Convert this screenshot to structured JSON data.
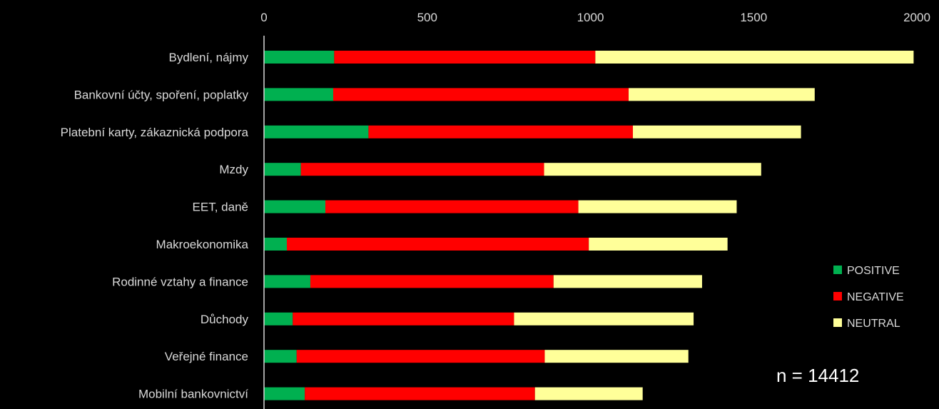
{
  "chart_data": {
    "type": "bar",
    "orientation": "horizontal",
    "stacked": true,
    "categories": [
      "Bydlení, nájmy",
      "Bankovní účty, spoření, poplatky",
      "Platební karty, zákaznická podpora",
      "Mzdy",
      "EET, daně",
      "Makroekonomika",
      "Rodinné vztahy a finance",
      "Důchody",
      "Veřejné finance",
      "Mobilní bankovnictví"
    ],
    "series": [
      {
        "name": "POSITIVE",
        "color": "#00b050",
        "values": [
          215,
          212,
          320,
          113,
          188,
          70,
          142,
          88,
          100,
          125
        ]
      },
      {
        "name": "NEGATIVE",
        "color": "#ff0000",
        "values": [
          800,
          905,
          810,
          745,
          775,
          925,
          745,
          678,
          760,
          705
        ]
      },
      {
        "name": "NEUTRAL",
        "color": "#ffff99",
        "values": [
          975,
          570,
          515,
          665,
          485,
          425,
          455,
          550,
          440,
          330
        ]
      }
    ],
    "xlim": [
      0,
      2000
    ],
    "xticks": [
      0,
      500,
      1000,
      1500,
      2000
    ],
    "xaxis_position": "top",
    "grid": false,
    "legend_position": "right",
    "annotation": "n = 14412"
  }
}
